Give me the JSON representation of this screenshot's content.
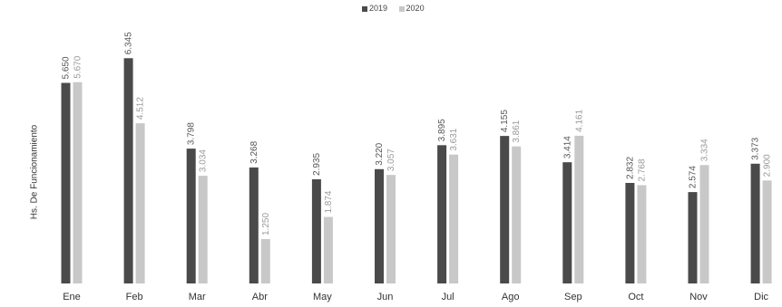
{
  "chart_data": {
    "type": "bar",
    "title": "",
    "xlabel": "",
    "ylabel": "Hs. De Funcionamiento",
    "categories": [
      "Ene",
      "Feb",
      "Mar",
      "Abr",
      "May",
      "Jun",
      "Jul",
      "Ago",
      "Sep",
      "Oct",
      "Nov",
      "Dic"
    ],
    "series": [
      {
        "name": "2019",
        "color": "#4a4a4a",
        "values": [
          5650,
          6345,
          3798,
          3268,
          2935,
          3220,
          3895,
          4155,
          3414,
          2832,
          2574,
          3373
        ],
        "labels": [
          "5.650",
          "6.345",
          "3.798",
          "3.268",
          "2.935",
          "3.220",
          "3.895",
          "4.155",
          "3.414",
          "2.832",
          "2.574",
          "3.373"
        ]
      },
      {
        "name": "2020",
        "color": "#c8c8c8",
        "values": [
          5670,
          4512,
          3034,
          1250,
          1874,
          3057,
          3631,
          3861,
          4161,
          2768,
          3334,
          2900
        ],
        "labels": [
          "5.670",
          "4.512",
          "3.034",
          "1.250",
          "1.874",
          "3.057",
          "3.631",
          "3.861",
          "4.161",
          "2.768",
          "3.334",
          "2.900"
        ]
      }
    ],
    "ylim": [
      0,
      7000
    ],
    "grid": false,
    "legend_position": "top-center",
    "data_labels": true
  }
}
